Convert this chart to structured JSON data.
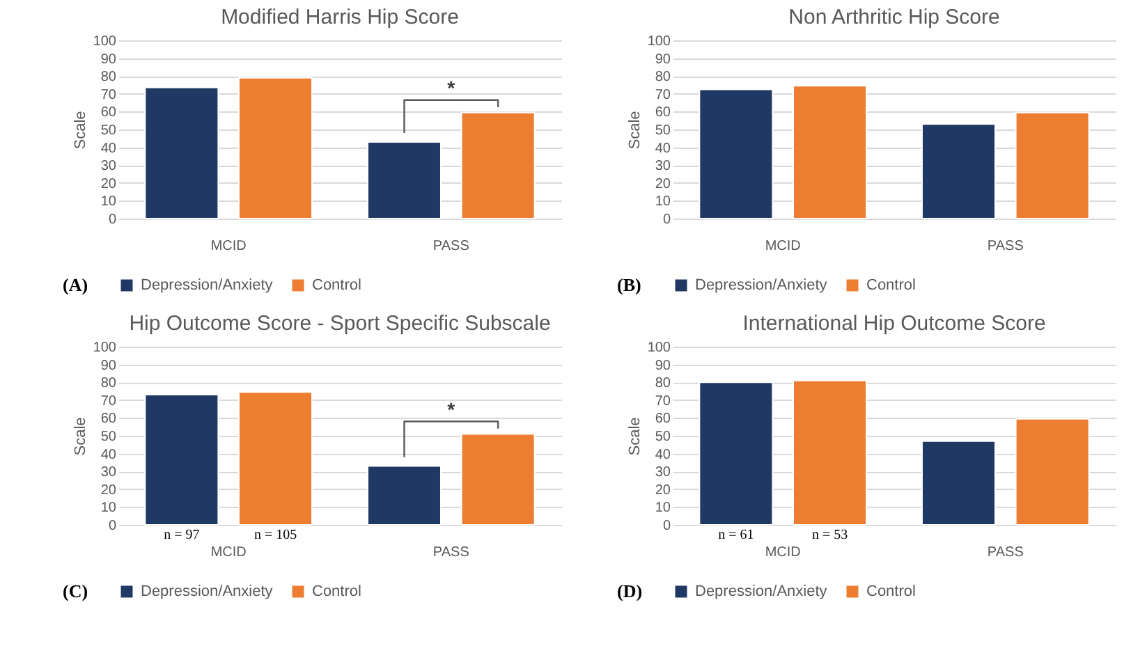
{
  "chart_data": [
    {
      "type": "bar",
      "title": "Modified Harris Hip Score",
      "ylabel": "Scale",
      "categories": [
        "MCID",
        "PASS"
      ],
      "series": [
        {
          "name": "Depression/Anxiety",
          "color": "#203864",
          "values": [
            73.5,
            43
          ]
        },
        {
          "name": "Control",
          "color": "#ed7d31",
          "values": [
            79,
            59.5
          ]
        }
      ],
      "ylim": [
        0,
        100
      ],
      "yticks": [
        0,
        10,
        20,
        30,
        40,
        50,
        60,
        70,
        80,
        90,
        100
      ],
      "grid": "y",
      "legend": "bottom",
      "annotations": [
        "(A)",
        "*"
      ]
    },
    {
      "type": "bar",
      "title": "Non Arthritic Hip Score",
      "ylabel": "Scale",
      "categories": [
        "MCID",
        "PASS"
      ],
      "series": [
        {
          "name": "Depression/Anxiety",
          "color": "#203864",
          "values": [
            72.5,
            53
          ]
        },
        {
          "name": "Control",
          "color": "#ed7d31",
          "values": [
            74.5,
            59.5
          ]
        }
      ],
      "ylim": [
        0,
        100
      ],
      "yticks": [
        0,
        10,
        20,
        30,
        40,
        50,
        60,
        70,
        80,
        90,
        100
      ],
      "grid": "y",
      "legend": "bottom",
      "annotations": [
        "(B)"
      ]
    },
    {
      "type": "bar",
      "title": "Hip Outcome Score - Sport Specific Subscale",
      "ylabel": "Scale",
      "categories": [
        "MCID",
        "PASS"
      ],
      "series": [
        {
          "name": "Depression/Anxiety",
          "color": "#203864",
          "values": [
            73,
            33
          ]
        },
        {
          "name": "Control",
          "color": "#ed7d31",
          "values": [
            74.5,
            51
          ]
        }
      ],
      "ylim": [
        0,
        100
      ],
      "yticks": [
        0,
        10,
        20,
        30,
        40,
        50,
        60,
        70,
        80,
        90,
        100
      ],
      "grid": "y",
      "legend": "bottom",
      "annotations": [
        "(C)",
        "*",
        "n = 97",
        "n = 105"
      ]
    },
    {
      "type": "bar",
      "title": "International Hip Outcome Score",
      "ylabel": "Scale",
      "categories": [
        "MCID",
        "PASS"
      ],
      "series": [
        {
          "name": "Depression/Anxiety",
          "color": "#203864",
          "values": [
            80,
            47
          ]
        },
        {
          "name": "Control",
          "color": "#ed7d31",
          "values": [
            81,
            59.5
          ]
        }
      ],
      "ylim": [
        0,
        100
      ],
      "yticks": [
        0,
        10,
        20,
        30,
        40,
        50,
        60,
        70,
        80,
        90,
        100
      ],
      "grid": "y",
      "legend": "bottom",
      "annotations": [
        "(D)",
        "n = 61",
        "n = 53"
      ]
    }
  ]
}
